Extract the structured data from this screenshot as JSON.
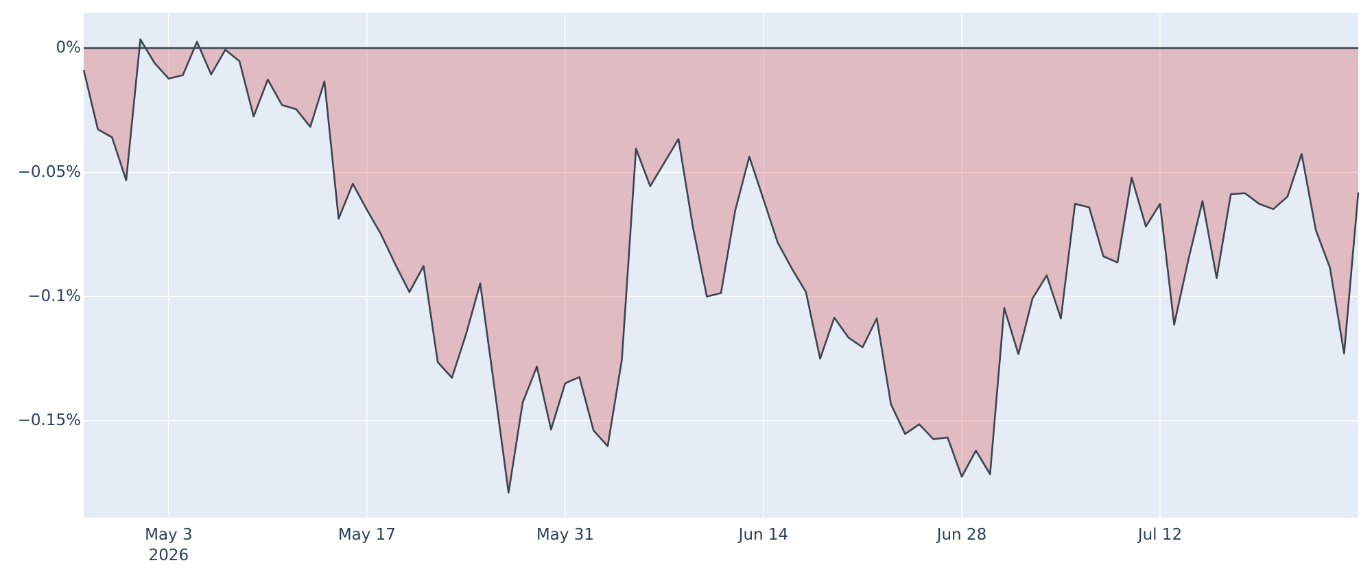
{
  "chart_data": {
    "type": "area",
    "x": [
      "2026-04-27",
      "2026-04-28",
      "2026-04-29",
      "2026-04-30",
      "2026-05-01",
      "2026-05-02",
      "2026-05-03",
      "2026-05-04",
      "2026-05-05",
      "2026-05-06",
      "2026-05-07",
      "2026-05-08",
      "2026-05-09",
      "2026-05-10",
      "2026-05-11",
      "2026-05-12",
      "2026-05-13",
      "2026-05-14",
      "2026-05-15",
      "2026-05-16",
      "2026-05-17",
      "2026-05-18",
      "2026-05-19",
      "2026-05-20",
      "2026-05-21",
      "2026-05-22",
      "2026-05-23",
      "2026-05-24",
      "2026-05-25",
      "2026-05-26",
      "2026-05-27",
      "2026-05-28",
      "2026-05-29",
      "2026-05-30",
      "2026-05-31",
      "2026-06-01",
      "2026-06-02",
      "2026-06-03",
      "2026-06-04",
      "2026-06-05",
      "2026-06-06",
      "2026-06-07",
      "2026-06-08",
      "2026-06-09",
      "2026-06-10",
      "2026-06-11",
      "2026-06-12",
      "2026-06-13",
      "2026-06-14",
      "2026-06-15",
      "2026-06-16",
      "2026-06-17",
      "2026-06-18",
      "2026-06-19",
      "2026-06-20",
      "2026-06-21",
      "2026-06-22",
      "2026-06-23",
      "2026-06-24",
      "2026-06-25",
      "2026-06-26",
      "2026-06-27",
      "2026-06-28",
      "2026-06-29",
      "2026-06-30",
      "2026-07-01",
      "2026-07-02",
      "2026-07-03",
      "2026-07-04",
      "2026-07-05",
      "2026-07-06",
      "2026-07-07",
      "2026-07-08",
      "2026-07-09",
      "2026-07-10",
      "2026-07-11",
      "2026-07-12",
      "2026-07-13",
      "2026-07-14",
      "2026-07-15",
      "2026-07-16",
      "2026-07-17",
      "2026-07-18",
      "2026-07-19",
      "2026-07-20",
      "2026-07-21",
      "2026-07-22",
      "2026-07-23",
      "2026-07-24",
      "2026-07-25",
      "2026-07-26"
    ],
    "series": [
      {
        "color": "#3b4452",
        "values": [
          -0.0088,
          -0.0327,
          -0.0359,
          -0.0532,
          0.0035,
          -0.006,
          -0.0123,
          -0.0109,
          0.0025,
          -0.0106,
          -0.0007,
          -0.0053,
          -0.0275,
          -0.0127,
          -0.0229,
          -0.0246,
          -0.0317,
          -0.0134,
          -0.0687,
          -0.0546,
          -0.0651,
          -0.075,
          -0.087,
          -0.0982,
          -0.0877,
          -0.1264,
          -0.1327,
          -0.1151,
          -0.0947,
          -0.1366,
          -0.1789,
          -0.1426,
          -0.1282,
          -0.1535,
          -0.1349,
          -0.1324,
          -0.1539,
          -0.1602,
          -0.1254,
          -0.0405,
          -0.0556,
          -0.0461,
          -0.0366,
          -0.0715,
          -0.1,
          -0.0986,
          -0.0655,
          -0.0437,
          -0.0609,
          -0.0782,
          -0.0887,
          -0.0982,
          -0.125,
          -0.1085,
          -0.1165,
          -0.1204,
          -0.1088,
          -0.1433,
          -0.1553,
          -0.1514,
          -0.1574,
          -0.1567,
          -0.1725,
          -0.162,
          -0.1715,
          -0.1046,
          -0.1232,
          -0.1007,
          -0.0915,
          -0.1088,
          -0.0627,
          -0.0641,
          -0.0838,
          -0.0863,
          -0.0521,
          -0.0718,
          -0.0627,
          -0.1113,
          -0.0852,
          -0.0616,
          -0.0926,
          -0.0588,
          -0.0584,
          -0.0627,
          -0.0648,
          -0.0598,
          -0.0426,
          -0.0732,
          -0.0884,
          -0.1229,
          -0.0581
        ]
      }
    ],
    "fill_colors": {
      "negative": "#d62728",
      "positive": "#2ca02c"
    },
    "xlim": [
      "2026-04-27",
      "2026-07-26"
    ],
    "xticks": [
      {
        "value": "2026-05-03",
        "label": "May 3\n2026"
      },
      {
        "value": "2026-05-17",
        "label": "May 17"
      },
      {
        "value": "2026-05-31",
        "label": "May 31"
      },
      {
        "value": "2026-06-14",
        "label": "Jun 14"
      },
      {
        "value": "2026-06-28",
        "label": "Jun 28"
      },
      {
        "value": "2026-07-12",
        "label": "Jul 12"
      }
    ],
    "ylim": [
      -0.189,
      0.0141
    ],
    "yticks": [
      {
        "value": 0,
        "label": "0%"
      },
      {
        "value": -0.05,
        "label": "−0.05%"
      },
      {
        "value": -0.1,
        "label": "−0.1%"
      },
      {
        "value": -0.15,
        "label": "−0.15%"
      }
    ],
    "grid": true
  }
}
